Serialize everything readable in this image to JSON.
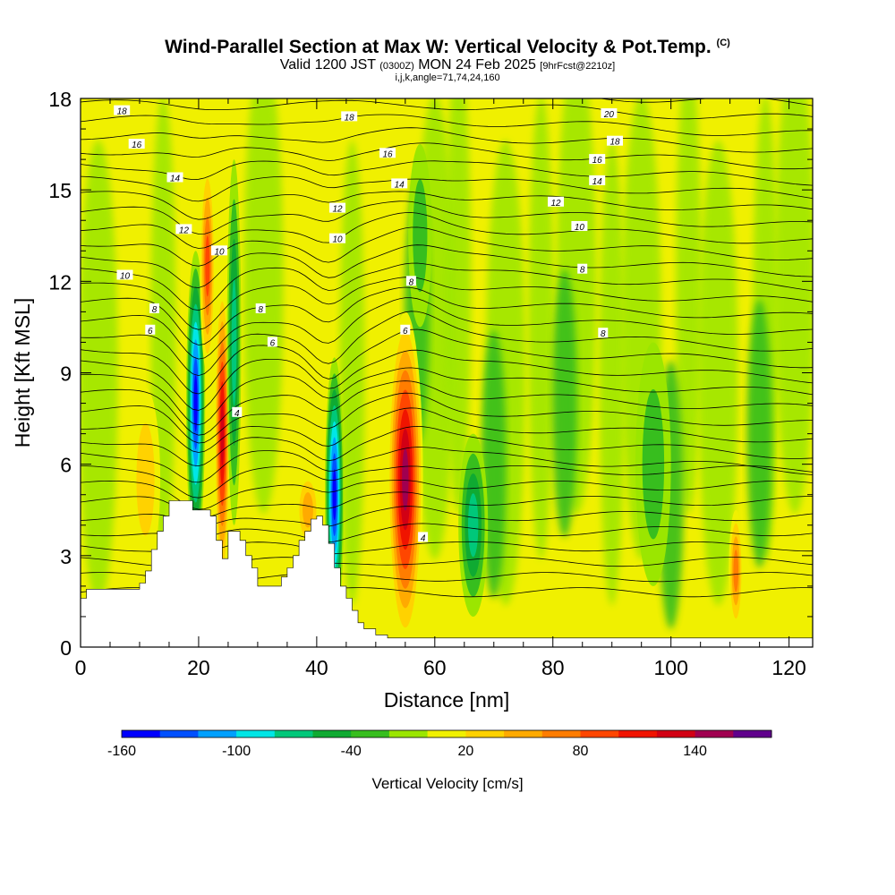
{
  "title": {
    "main": "Wind-Parallel Section at Max W: Vertical Velocity & Pot.Temp.",
    "copyright": "(C)",
    "valid_prefix": "Valid 1200 JST",
    "valid_z": "(0300Z)",
    "valid_date": "MON 24 Feb 2025",
    "forecast": "[9hrFcst@2210z]",
    "section": "i,j,k,angle=71,74,24,160"
  },
  "chart_data": {
    "type": "heatmap",
    "xlabel": "Distance [nm]",
    "ylabel": "Height [Kft MSL]",
    "xlim": [
      0,
      124
    ],
    "ylim": [
      0,
      18
    ],
    "x_ticks": [
      0,
      20,
      40,
      60,
      80,
      100,
      120
    ],
    "y_ticks": [
      0,
      3,
      6,
      9,
      12,
      15,
      18
    ],
    "colorbar": {
      "label": "Vertical Velocity [cm/s]",
      "tick_labels": [
        "-160",
        "-100",
        "-40",
        "20",
        "80",
        "140"
      ],
      "tick_values": [
        -160,
        -100,
        -40,
        20,
        80,
        140
      ],
      "bins": [
        -160,
        -140,
        -120,
        -100,
        -80,
        -60,
        -40,
        -20,
        0,
        20,
        40,
        60,
        80,
        100,
        120,
        140,
        160,
        180
      ],
      "colors": [
        "#0000ff",
        "#0050ff",
        "#00a0ff",
        "#00e6e6",
        "#00c87a",
        "#0faa32",
        "#37be1e",
        "#9be600",
        "#f0f000",
        "#ffd200",
        "#ffaa00",
        "#ff7d00",
        "#ff4600",
        "#f01400",
        "#d20014",
        "#a00050",
        "#60008c"
      ]
    },
    "terrain_profile": [
      [
        0,
        1.6
      ],
      [
        1,
        1.9
      ],
      [
        2,
        1.9
      ],
      [
        8,
        1.9
      ],
      [
        10,
        2.1
      ],
      [
        11,
        2.5
      ],
      [
        12,
        3.2
      ],
      [
        13,
        3.8
      ],
      [
        14,
        4.3
      ],
      [
        15,
        4.8
      ],
      [
        18,
        4.8
      ],
      [
        19,
        4.5
      ],
      [
        21,
        4.5
      ],
      [
        22,
        4.3
      ],
      [
        23,
        3.5
      ],
      [
        24,
        2.9
      ],
      [
        25,
        3.8
      ],
      [
        26,
        3.8
      ],
      [
        27,
        3.5
      ],
      [
        28,
        3.0
      ],
      [
        29,
        2.6
      ],
      [
        30,
        2.0
      ],
      [
        33,
        2.0
      ],
      [
        34,
        2.3
      ],
      [
        35,
        2.6
      ],
      [
        36,
        3.0
      ],
      [
        37,
        3.5
      ],
      [
        38,
        3.8
      ],
      [
        39,
        4.2
      ],
      [
        40,
        4.3
      ],
      [
        41,
        4.0
      ],
      [
        42,
        3.4
      ],
      [
        43,
        2.6
      ],
      [
        44,
        2.0
      ],
      [
        45,
        1.6
      ],
      [
        46,
        1.2
      ],
      [
        47,
        0.8
      ],
      [
        48,
        0.6
      ],
      [
        50,
        0.4
      ],
      [
        52,
        0.3
      ],
      [
        124,
        0.3
      ]
    ],
    "vertical_velocity_features": [
      {
        "x": 11,
        "y": 5.5,
        "rx": 2.5,
        "ry": 3.0,
        "value": 30
      },
      {
        "x": 19.5,
        "y": 8.0,
        "rx": 1.6,
        "ry": 5.0,
        "value": -160
      },
      {
        "x": 21.5,
        "y": 12.5,
        "rx": 1.3,
        "ry": 3.5,
        "value": 90
      },
      {
        "x": 24.0,
        "y": 7.0,
        "rx": 1.3,
        "ry": 5.0,
        "value": 140
      },
      {
        "x": 26.0,
        "y": 10.0,
        "rx": 1.2,
        "ry": 6.0,
        "value": -70
      },
      {
        "x": 38.5,
        "y": 4.5,
        "rx": 2.0,
        "ry": 1.3,
        "value": 50
      },
      {
        "x": 43.0,
        "y": 5.0,
        "rx": 1.6,
        "ry": 4.5,
        "value": -150
      },
      {
        "x": 55.0,
        "y": 5.5,
        "rx": 3.0,
        "ry": 5.5,
        "value": 160
      },
      {
        "x": 66.5,
        "y": 4.0,
        "rx": 2.5,
        "ry": 3.0,
        "value": -80
      },
      {
        "x": 57.5,
        "y": 13.5,
        "rx": 2.0,
        "ry": 3.0,
        "value": -40
      },
      {
        "x": 97.0,
        "y": 6.0,
        "rx": 3.0,
        "ry": 4.0,
        "value": -40
      },
      {
        "x": 111.0,
        "y": 2.5,
        "rx": 1.2,
        "ry": 2.0,
        "value": 80
      }
    ],
    "potential_temperature_labels": [
      {
        "text": "18",
        "x": 7,
        "y": 17.6
      },
      {
        "text": "16",
        "x": 9.5,
        "y": 16.5
      },
      {
        "text": "14",
        "x": 16,
        "y": 15.4
      },
      {
        "text": "12",
        "x": 17.5,
        "y": 13.7
      },
      {
        "text": "10",
        "x": 7.5,
        "y": 12.2
      },
      {
        "text": "8",
        "x": 12.5,
        "y": 11.1
      },
      {
        "text": "6",
        "x": 11.8,
        "y": 10.4
      },
      {
        "text": "10",
        "x": 23.5,
        "y": 13.0
      },
      {
        "text": "8",
        "x": 30.5,
        "y": 11.1
      },
      {
        "text": "6",
        "x": 32.5,
        "y": 10.0
      },
      {
        "text": "4",
        "x": 26.5,
        "y": 7.7
      },
      {
        "text": "18",
        "x": 45.5,
        "y": 17.4
      },
      {
        "text": "16",
        "x": 52,
        "y": 16.2
      },
      {
        "text": "14",
        "x": 54,
        "y": 15.2
      },
      {
        "text": "12",
        "x": 43.5,
        "y": 14.4
      },
      {
        "text": "10",
        "x": 43.5,
        "y": 13.4
      },
      {
        "text": "8",
        "x": 56,
        "y": 12.0
      },
      {
        "text": "6",
        "x": 55,
        "y": 10.4
      },
      {
        "text": "4",
        "x": 58,
        "y": 3.6
      },
      {
        "text": "20",
        "x": 89.5,
        "y": 17.5
      },
      {
        "text": "18",
        "x": 90.5,
        "y": 16.6
      },
      {
        "text": "16",
        "x": 87.5,
        "y": 16.0
      },
      {
        "text": "14",
        "x": 87.5,
        "y": 15.3
      },
      {
        "text": "12",
        "x": 80.5,
        "y": 14.6
      },
      {
        "text": "10",
        "x": 84.5,
        "y": 13.8
      },
      {
        "text": "8",
        "x": 85,
        "y": 12.4
      },
      {
        "text": "8",
        "x": 88.5,
        "y": 10.3
      }
    ]
  }
}
